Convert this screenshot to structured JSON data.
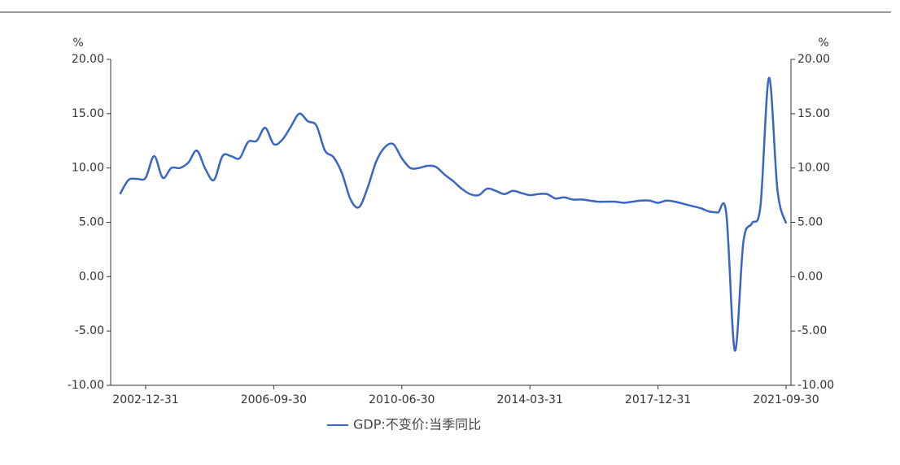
{
  "chart_data": {
    "type": "line",
    "y_unit": "%",
    "y2_unit": "%",
    "categories": [
      null,
      null,
      null,
      "2002-12-31",
      null,
      null,
      null,
      null,
      null,
      null,
      null,
      null,
      null,
      null,
      null,
      null,
      null,
      null,
      "2006-09-30",
      null,
      null,
      null,
      null,
      null,
      null,
      null,
      null,
      null,
      null,
      null,
      null,
      null,
      null,
      "2010-06-30",
      null,
      null,
      null,
      null,
      null,
      null,
      null,
      null,
      null,
      null,
      null,
      null,
      null,
      null,
      "2014-03-31",
      null,
      null,
      null,
      null,
      null,
      null,
      null,
      null,
      null,
      null,
      null,
      null,
      null,
      null,
      "2017-12-31",
      null,
      null,
      null,
      null,
      null,
      null,
      null,
      null,
      null,
      null,
      null,
      null,
      null,
      null,
      "2021-09-30"
    ],
    "series": [
      {
        "name": "GDP:不变价:当季同比",
        "color": "#3b65c2",
        "values": [
          7.6,
          8.9,
          9.0,
          9.1,
          11.1,
          9.1,
          10.0,
          10.0,
          10.5,
          11.6,
          9.9,
          8.9,
          11.1,
          11.1,
          10.9,
          12.4,
          12.5,
          13.7,
          12.2,
          12.6,
          13.8,
          15.0,
          14.3,
          13.9,
          11.6,
          11.0,
          9.5,
          7.1,
          6.4,
          8.2,
          10.6,
          11.9,
          12.2,
          10.9,
          10.0,
          10.0,
          10.2,
          10.1,
          9.4,
          8.8,
          8.1,
          7.6,
          7.5,
          8.1,
          7.9,
          7.6,
          7.9,
          7.7,
          7.5,
          7.6,
          7.6,
          7.2,
          7.3,
          7.1,
          7.1,
          7.0,
          6.9,
          6.9,
          6.9,
          6.8,
          6.9,
          7.0,
          7.0,
          6.8,
          7.0,
          6.9,
          6.7,
          6.5,
          6.3,
          6.0,
          5.9,
          5.8,
          -6.8,
          3.2,
          4.9,
          6.5,
          18.3,
          7.9,
          4.9
        ]
      }
    ],
    "ylim": [
      -10,
      20
    ],
    "yticks": [
      {
        "value": -10,
        "label": "-10.00"
      },
      {
        "value": -5,
        "label": "-5.00"
      },
      {
        "value": 0,
        "label": "0.00"
      },
      {
        "value": 5,
        "label": "5.00"
      },
      {
        "value": 10,
        "label": "10.00"
      },
      {
        "value": 15,
        "label": "15.00"
      },
      {
        "value": 20,
        "label": "20.00"
      }
    ],
    "y2lim": [
      -10,
      20
    ],
    "y2ticks": [
      {
        "value": -10,
        "label": "-10.00"
      },
      {
        "value": -5,
        "label": "-5.00"
      },
      {
        "value": 0,
        "label": "0.00"
      },
      {
        "value": 5,
        "label": "5.00"
      },
      {
        "value": 10,
        "label": "10.00"
      },
      {
        "value": 15,
        "label": "15.00"
      },
      {
        "value": 20,
        "label": "20.00"
      }
    ],
    "legend": "bottom"
  }
}
